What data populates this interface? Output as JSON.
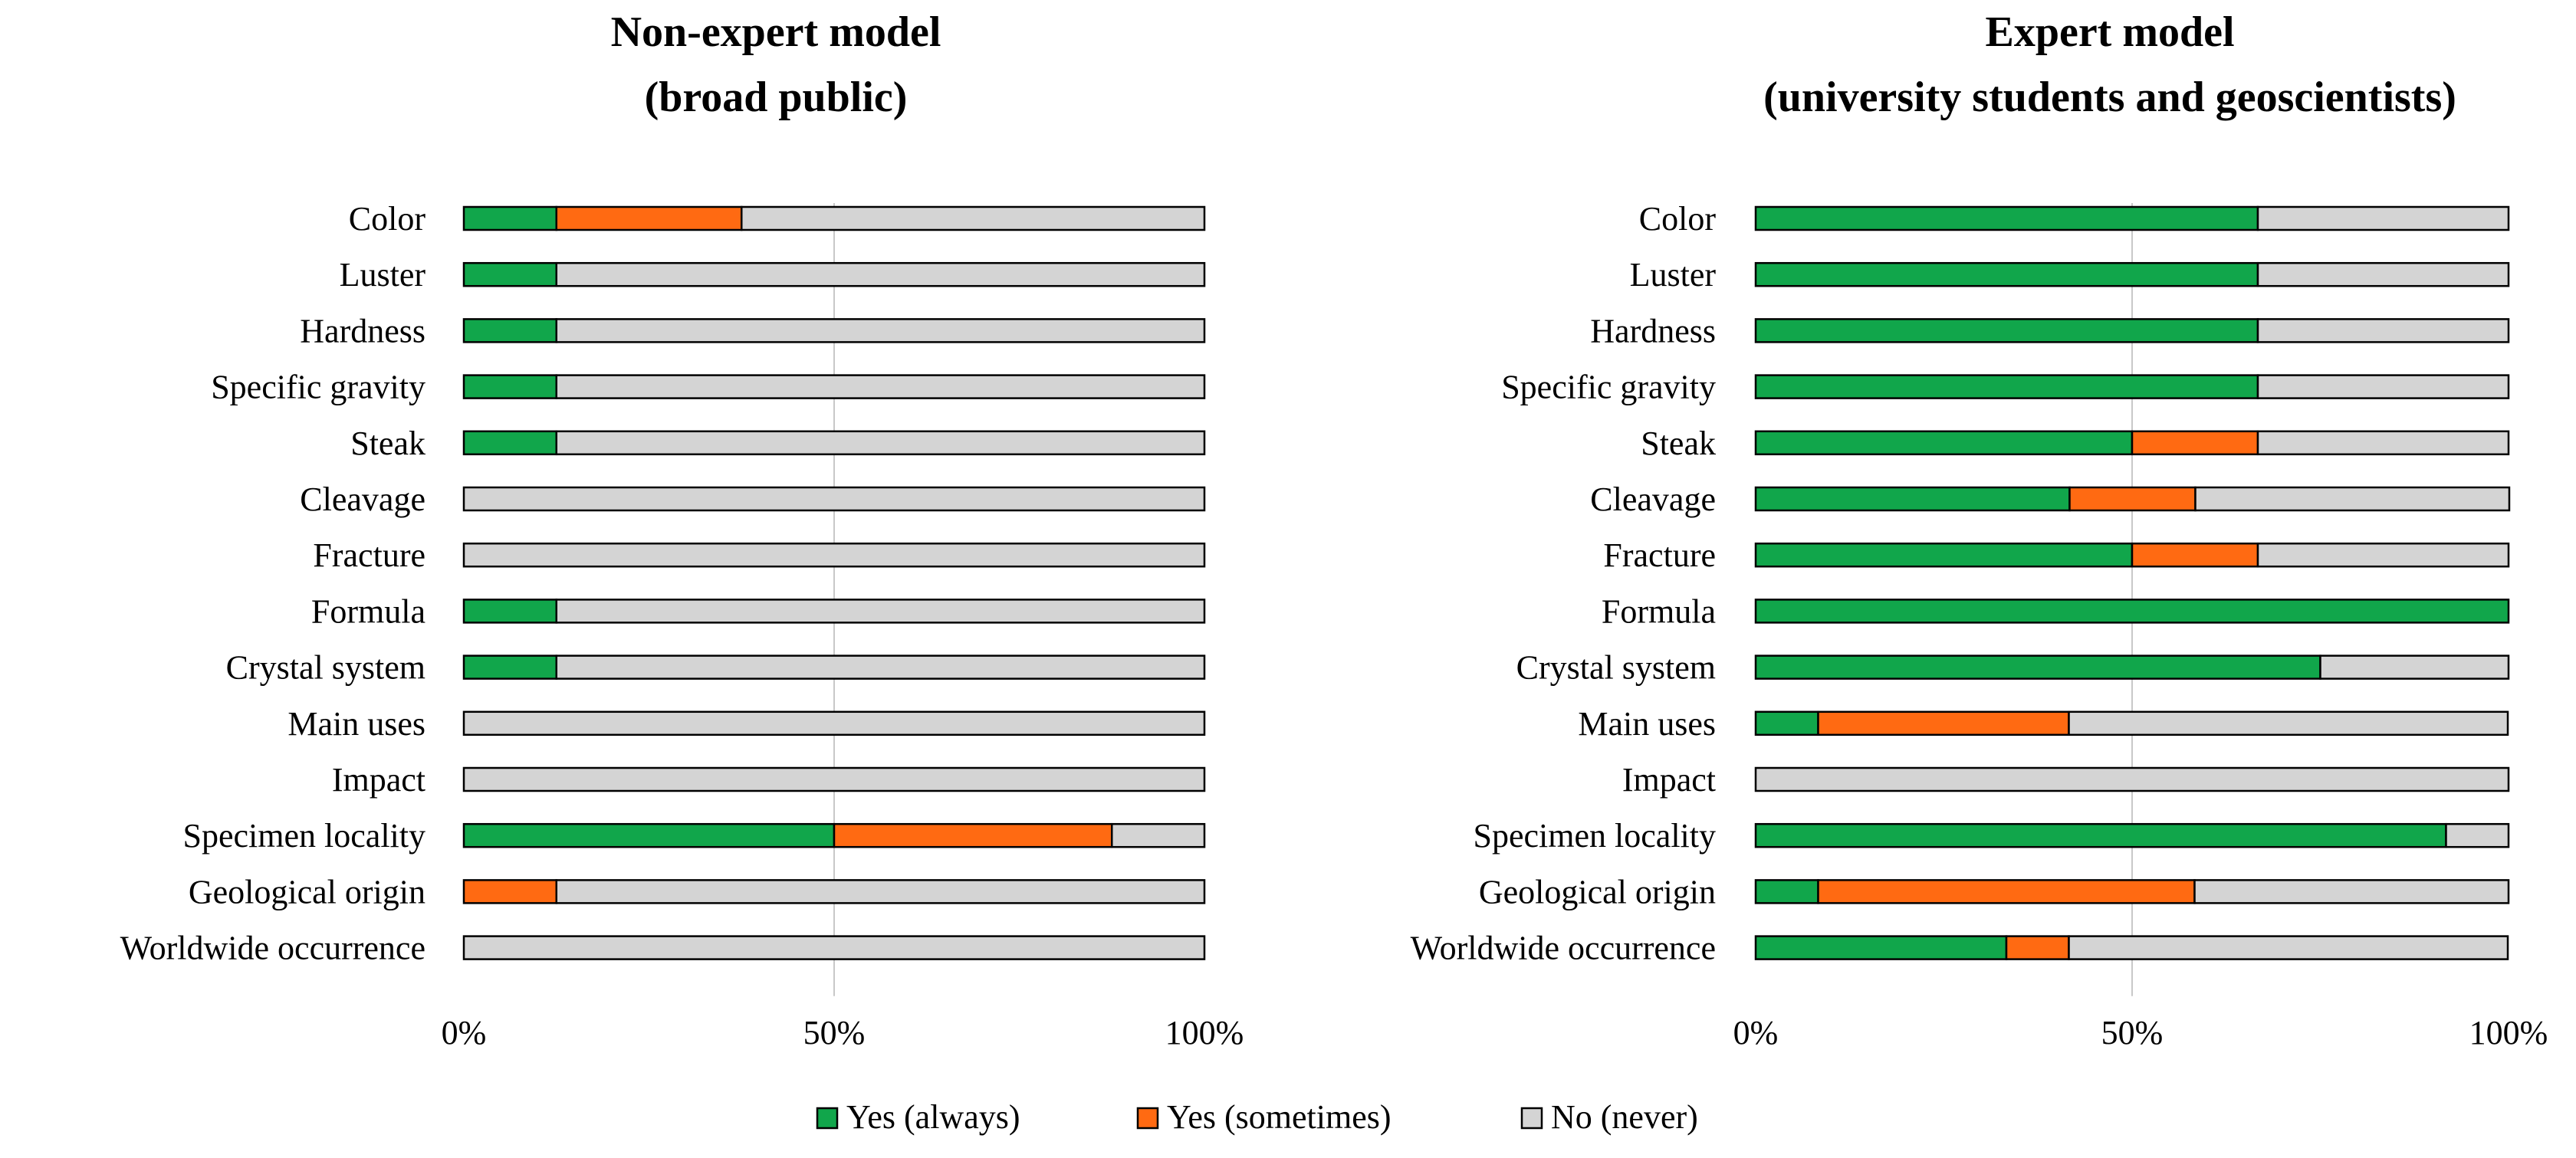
{
  "chart_data": [
    {
      "type": "bar",
      "orientation": "horizontal",
      "stacked": true,
      "title_lines": [
        "Non-expert model",
        "(broad public)"
      ],
      "categories": [
        "Color",
        "Luster",
        "Hardness",
        "Specific gravity",
        "Steak",
        "Cleavage",
        "Fracture",
        "Formula",
        "Crystal system",
        "Main uses",
        "Impact",
        "Specimen locality",
        "Geological origin",
        "Worldwide occurrence"
      ],
      "series": [
        {
          "name": "Yes (always)",
          "color": "#11a64b",
          "values": [
            12.5,
            12.5,
            12.5,
            12.5,
            12.5,
            0,
            0,
            12.5,
            12.5,
            0,
            0,
            50,
            0,
            0
          ]
        },
        {
          "name": "Yes (sometimes)",
          "color": "#ff6a12",
          "values": [
            25,
            0,
            0,
            0,
            0,
            0,
            0,
            0,
            0,
            0,
            0,
            37.5,
            12.5,
            0
          ]
        },
        {
          "name": "No (never)",
          "color": "#d4d4d4",
          "values": [
            62.5,
            87.5,
            87.5,
            87.5,
            87.5,
            100,
            100,
            87.5,
            87.5,
            100,
            100,
            12.5,
            87.5,
            100
          ]
        }
      ],
      "xlim": [
        0,
        100
      ],
      "xticks": [
        "0%",
        "50%",
        "100%"
      ],
      "grid": true
    },
    {
      "type": "bar",
      "orientation": "horizontal",
      "stacked": true,
      "title_lines": [
        "Expert model",
        "(university students and geoscientists)"
      ],
      "categories": [
        "Color",
        "Luster",
        "Hardness",
        "Specific gravity",
        "Steak",
        "Cleavage",
        "Fracture",
        "Formula",
        "Crystal system",
        "Main uses",
        "Impact",
        "Specimen locality",
        "Geological origin",
        "Worldwide occurrence"
      ],
      "series": [
        {
          "name": "Yes (always)",
          "color": "#11a64b",
          "values": [
            66.7,
            66.7,
            66.7,
            66.7,
            50,
            41.7,
            50,
            100,
            75,
            8.3,
            0,
            91.7,
            8.3,
            33.3
          ]
        },
        {
          "name": "Yes (sometimes)",
          "color": "#ff6a12",
          "values": [
            0,
            0,
            0,
            0,
            16.7,
            16.7,
            16.7,
            0,
            0,
            33.3,
            0,
            0,
            50,
            8.3
          ]
        },
        {
          "name": "No (never)",
          "color": "#d4d4d4",
          "values": [
            33.3,
            33.3,
            33.3,
            33.3,
            33.3,
            41.7,
            33.3,
            0,
            25,
            58.3,
            100,
            8.3,
            41.7,
            58.3
          ]
        }
      ],
      "xlim": [
        0,
        100
      ],
      "xticks": [
        "0%",
        "50%",
        "100%"
      ],
      "grid": true
    }
  ],
  "legend": {
    "items": [
      {
        "label": "Yes (always)",
        "color": "#11a64b"
      },
      {
        "label": "Yes (sometimes)",
        "color": "#ff6a12"
      },
      {
        "label": "No (never)",
        "color": "#d4d4d4"
      }
    ]
  }
}
